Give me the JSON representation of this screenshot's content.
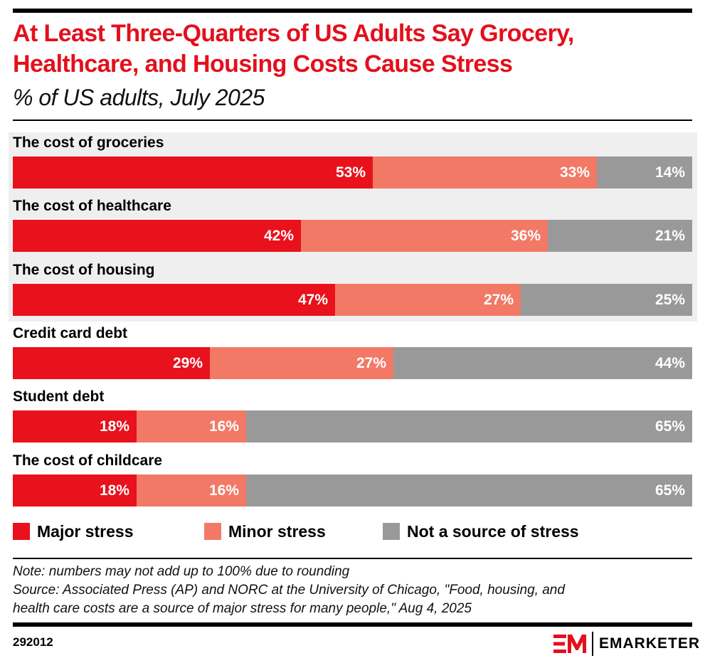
{
  "header": {
    "title": "At Least Three-Quarters of US Adults Say Grocery, Healthcare, and Housing Costs Cause Stress",
    "subtitle": "% of US adults, July 2025"
  },
  "colors": {
    "major": "#e8111c",
    "minor": "#f27966",
    "not": "#999999",
    "highlight": "#efefef",
    "title": "#e3101c"
  },
  "chart_data": {
    "type": "bar",
    "orientation": "horizontal-stacked-100",
    "title": "At Least Three-Quarters of US Adults Say Grocery, Healthcare, and Housing Costs Cause Stress",
    "subtitle": "% of US adults, July 2025",
    "xlabel": "",
    "ylabel": "",
    "xlim": [
      0,
      100
    ],
    "grid": false,
    "legend_position": "bottom",
    "highlighted_categories": [
      "The cost of groceries",
      "The cost of healthcare",
      "The cost of housing"
    ],
    "categories": [
      "The cost of groceries",
      "The cost of healthcare",
      "The cost of housing",
      "Credit card debt",
      "Student debt",
      "The cost of childcare"
    ],
    "series": [
      {
        "name": "Major stress",
        "color": "#e8111c",
        "values": [
          53,
          42,
          47,
          29,
          18,
          18
        ],
        "labels": [
          "53%",
          "42%",
          "47%",
          "29%",
          "18%",
          "18%"
        ]
      },
      {
        "name": "Minor stress",
        "color": "#f27966",
        "values": [
          33,
          36,
          27,
          27,
          16,
          16
        ],
        "labels": [
          "33%",
          "36%",
          "27%",
          "27%",
          "16%",
          "16%"
        ]
      },
      {
        "name": "Not a source of stress",
        "color": "#999999",
        "values": [
          14,
          21,
          25,
          44,
          65,
          65
        ],
        "labels": [
          "14%",
          "21%",
          "25%",
          "44%",
          "65%",
          "65%"
        ]
      }
    ]
  },
  "legend": [
    {
      "label": "Major stress",
      "color": "#e8111c"
    },
    {
      "label": "Minor stress",
      "color": "#f27966"
    },
    {
      "label": "Not a source of stress",
      "color": "#999999"
    }
  ],
  "footer": {
    "note": "Note: numbers may not add up to 100% due to rounding",
    "source_line1": "Source: Associated Press (AP) and NORC at the University of Chicago, \"Food, housing, and",
    "source_line2": "health care costs are a source of major stress for many people,\" Aug 4, 2025",
    "chart_id": "292012",
    "brand": "EMARKETER"
  }
}
